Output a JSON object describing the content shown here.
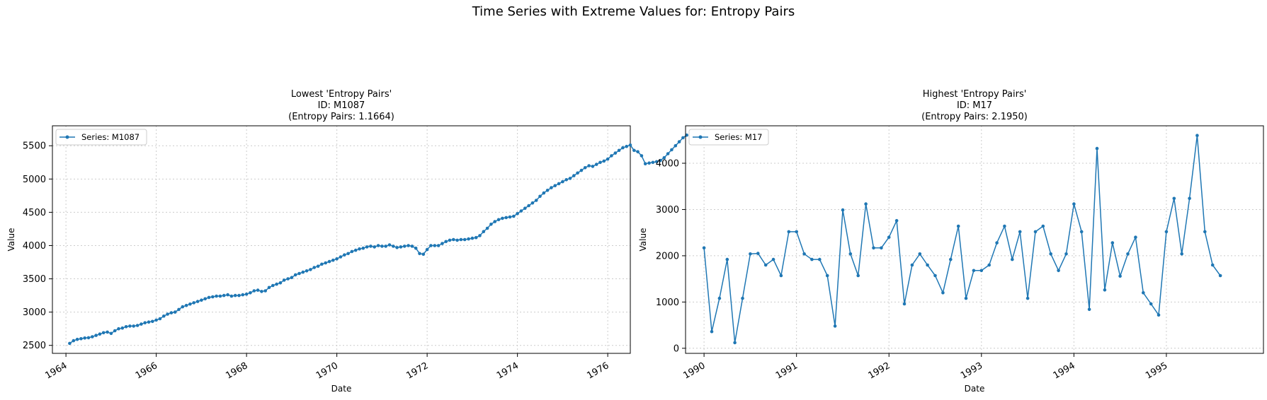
{
  "suptitle": "Time Series with Extreme Values for: Entropy Pairs",
  "chart_data": [
    {
      "type": "line",
      "title_lines": [
        "Lowest 'Entropy Pairs'",
        "ID: M1087",
        "(Entropy Pairs: 1.1664)"
      ],
      "xlabel": "Date",
      "ylabel": "Value",
      "x_axis": "date",
      "xlim": [
        1963.7,
        1976.5
      ],
      "ylim": [
        2380,
        5800
      ],
      "xticks": [
        1964,
        1966,
        1968,
        1970,
        1972,
        1974,
        1976
      ],
      "xtick_labels": [
        "1964",
        "1966",
        "1968",
        "1970",
        "1972",
        "1974",
        "1976"
      ],
      "yticks": [
        2500,
        3000,
        3500,
        4000,
        4500,
        5000,
        5500
      ],
      "ytick_labels": [
        "2500",
        "3000",
        "3500",
        "4000",
        "4500",
        "5000",
        "5500"
      ],
      "grid": true,
      "legend_position": "upper-left",
      "color": "#1f77b4",
      "series": [
        {
          "name": "Series: M1087",
          "x_start": "1964-02",
          "frequency": "monthly",
          "values": [
            2530,
            2570,
            2590,
            2600,
            2610,
            2615,
            2630,
            2650,
            2670,
            2690,
            2700,
            2680,
            2720,
            2750,
            2760,
            2780,
            2790,
            2790,
            2800,
            2820,
            2840,
            2850,
            2860,
            2880,
            2900,
            2940,
            2970,
            2990,
            3000,
            3040,
            3080,
            3100,
            3120,
            3140,
            3160,
            3180,
            3200,
            3220,
            3230,
            3240,
            3240,
            3250,
            3260,
            3240,
            3250,
            3250,
            3260,
            3270,
            3290,
            3320,
            3330,
            3310,
            3320,
            3370,
            3400,
            3420,
            3440,
            3480,
            3500,
            3520,
            3560,
            3580,
            3600,
            3620,
            3640,
            3670,
            3690,
            3720,
            3740,
            3760,
            3780,
            3800,
            3830,
            3860,
            3880,
            3910,
            3930,
            3950,
            3960,
            3980,
            3990,
            3980,
            4000,
            3990,
            3990,
            4010,
            3990,
            3970,
            3980,
            3990,
            4000,
            3990,
            3960,
            3880,
            3870,
            3940,
            4000,
            4000,
            4000,
            4030,
            4060,
            4080,
            4090,
            4080,
            4090,
            4090,
            4100,
            4110,
            4120,
            4150,
            4210,
            4260,
            4320,
            4360,
            4390,
            4410,
            4420,
            4430,
            4440,
            4480,
            4520,
            4560,
            4600,
            4640,
            4680,
            4740,
            4790,
            4830,
            4870,
            4900,
            4930,
            4960,
            4990,
            5010,
            5050,
            5090,
            5130,
            5170,
            5200,
            5190,
            5220,
            5250,
            5270,
            5300,
            5350,
            5390,
            5430,
            5470,
            5490,
            5510,
            5430,
            5410,
            5350,
            5230,
            5240,
            5250,
            5260,
            5280,
            5320,
            5380,
            5440,
            5500,
            5560,
            5620,
            5660
          ]
        }
      ]
    },
    {
      "type": "line",
      "title_lines": [
        "Highest 'Entropy Pairs'",
        "ID: M17",
        "(Entropy Pairs: 2.1950)"
      ],
      "xlabel": "Date",
      "ylabel": "Value",
      "x_axis": "date",
      "xlim": [
        1989.8,
        1996.05
      ],
      "ylim": [
        -110,
        4810
      ],
      "xticks": [
        1990,
        1991,
        1992,
        1993,
        1994,
        1995
      ],
      "xtick_labels": [
        "1990",
        "1991",
        "1992",
        "1993",
        "1994",
        "1995"
      ],
      "yticks": [
        0,
        1000,
        2000,
        3000,
        4000
      ],
      "ytick_labels": [
        "0",
        "1000",
        "2000",
        "3000",
        "4000"
      ],
      "grid": true,
      "legend_position": "upper-left",
      "color": "#1f77b4",
      "series": [
        {
          "name": "Series: M17",
          "x_start": "1990-01",
          "frequency": "monthly",
          "values": [
            2170,
            360,
            1080,
            1920,
            120,
            1080,
            2040,
            2050,
            1800,
            1920,
            1570,
            2520,
            2520,
            2040,
            1920,
            1920,
            1570,
            480,
            2990,
            2040,
            1570,
            3120,
            2170,
            2170,
            2400,
            2760,
            960,
            1800,
            2040,
            1800,
            1570,
            1200,
            1920,
            2640,
            1080,
            1680,
            1680,
            1800,
            2280,
            2640,
            1920,
            2520,
            1080,
            2520,
            2640,
            2040,
            1680,
            2040,
            3120,
            2520,
            840,
            4320,
            1260,
            2280,
            1560,
            2040,
            2400,
            1200,
            960,
            720,
            2520,
            3240,
            2040,
            3240,
            4600,
            2520,
            1800,
            1570
          ]
        }
      ]
    }
  ]
}
